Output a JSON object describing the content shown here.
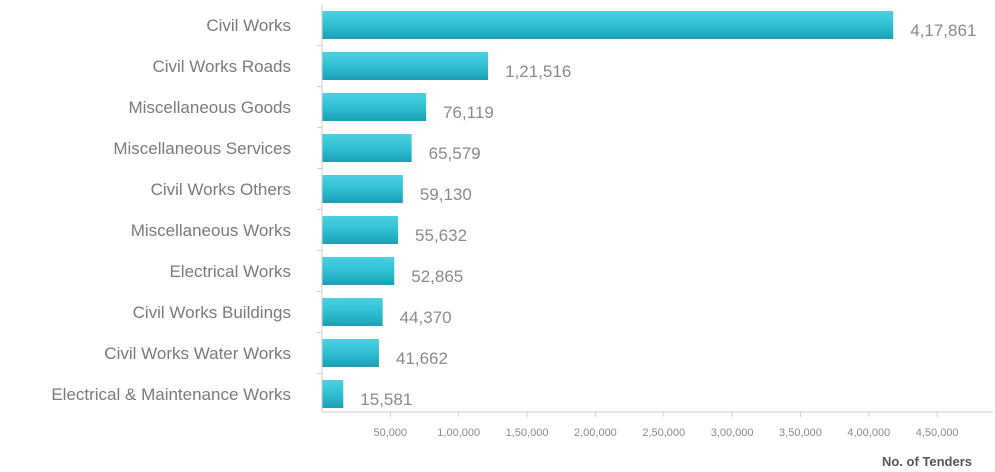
{
  "chart_data": {
    "type": "bar",
    "orientation": "horizontal",
    "categories": [
      "Civil Works",
      "Civil Works Roads",
      "Miscellaneous Goods",
      "Miscellaneous Services",
      "Civil Works Others",
      "Miscellaneous Works",
      "Electrical Works",
      "Civil Works Buildings",
      "Civil Works Water Works",
      "Electrical & Maintenance Works"
    ],
    "values": [
      417861,
      121516,
      76119,
      65579,
      59130,
      55632,
      52865,
      44370,
      41662,
      15581
    ],
    "value_labels": [
      "4,17,861",
      "1,21,516",
      "76,119",
      "65,579",
      "59,130",
      "55,632",
      "52,865",
      "44,370",
      "41,662",
      "15,581"
    ],
    "xticks": [
      50000,
      100000,
      150000,
      200000,
      250000,
      300000,
      350000,
      400000,
      450000
    ],
    "xtick_labels": [
      "50,000",
      "1,00,000",
      "1,50,000",
      "2,00,000",
      "2,50,000",
      "3,00,000",
      "3,50,000",
      "4,00,000",
      "4,50,000"
    ],
    "xlim": [
      0,
      485000
    ],
    "xlabel": "No. of Tenders",
    "ylabel": "",
    "title": "",
    "grid": false,
    "legend": "none",
    "bar_color": "#2fc3d6",
    "bar_color_dark": "#1ea3b9"
  }
}
